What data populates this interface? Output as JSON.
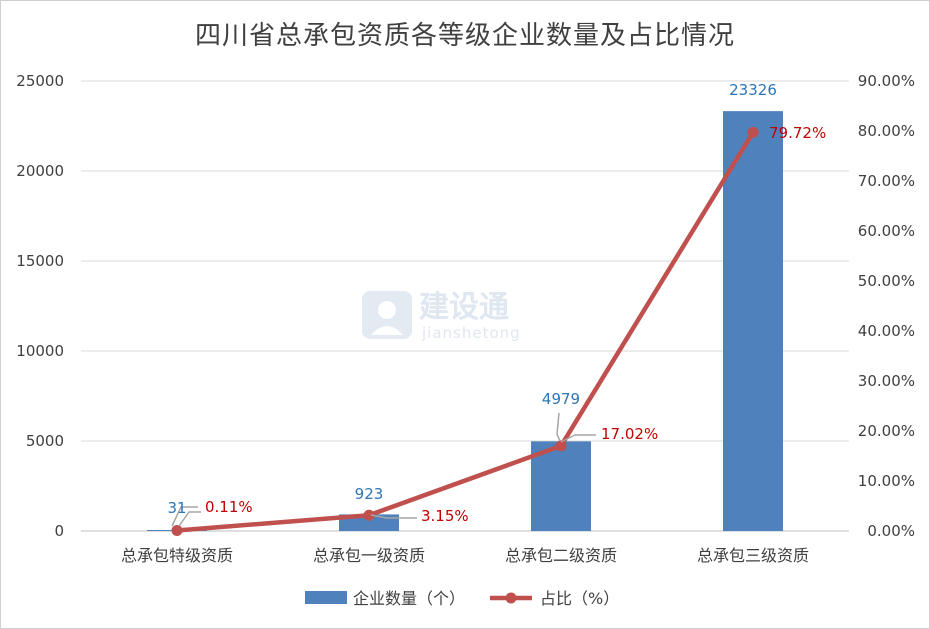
{
  "chart_data": {
    "type": "bar",
    "title": "四川省总承包资质各等级企业数量及占比情况",
    "categories": [
      "总承包特级资质",
      "总承包一级资质",
      "总承包二级资质",
      "总承包三级资质"
    ],
    "series": [
      {
        "name": "企业数量（个）",
        "type": "bar",
        "axis": "left",
        "color": "#4f81bd",
        "values": [
          31,
          923,
          4979,
          23326
        ],
        "labels": [
          "31",
          "923",
          "4979",
          "23326"
        ]
      },
      {
        "name": "占比（%）",
        "type": "line",
        "axis": "right",
        "color": "#c0504d",
        "values": [
          0.11,
          3.15,
          17.02,
          79.72
        ],
        "labels": [
          "0.11%",
          "3.15%",
          "17.02%",
          "79.72%"
        ]
      }
    ],
    "y_left": {
      "ylim": [
        0,
        25000
      ],
      "ticks": [
        "0",
        "5000",
        "10000",
        "15000",
        "20000",
        "25000"
      ],
      "values": [
        0,
        5000,
        10000,
        15000,
        20000,
        25000
      ]
    },
    "y_right": {
      "ylim": [
        0,
        90
      ],
      "ticks": [
        "0.00%",
        "10.00%",
        "20.00%",
        "30.00%",
        "40.00%",
        "50.00%",
        "60.00%",
        "70.00%",
        "80.00%",
        "90.00%"
      ],
      "values": [
        0,
        10,
        20,
        30,
        40,
        50,
        60,
        70,
        80,
        90
      ]
    },
    "grid": true,
    "legend_position": "bottom"
  },
  "watermark": {
    "name": "建设通",
    "sub": "jianshetong"
  }
}
